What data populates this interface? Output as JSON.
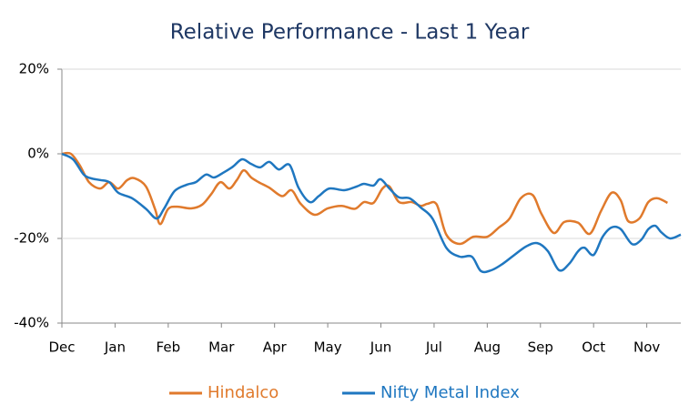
{
  "chart_data": {
    "type": "line",
    "title": "Relative Performance - Last 1 Year",
    "xlim": [
      0,
      11.64
    ],
    "xticks": [
      {
        "value": 0,
        "label": "Dec"
      },
      {
        "value": 1,
        "label": "Jan"
      },
      {
        "value": 2,
        "label": "Feb"
      },
      {
        "value": 3,
        "label": "Mar"
      },
      {
        "value": 4,
        "label": "Apr"
      },
      {
        "value": 5,
        "label": "May"
      },
      {
        "value": 6,
        "label": "Jun"
      },
      {
        "value": 7,
        "label": "Jul"
      },
      {
        "value": 8,
        "label": "Aug"
      },
      {
        "value": 9,
        "label": "Sep"
      },
      {
        "value": 10,
        "label": "Oct"
      },
      {
        "value": 11,
        "label": "Nov"
      }
    ],
    "ylim": [
      -40,
      20
    ],
    "yticks": [
      {
        "value": 20,
        "label": "20%"
      },
      {
        "value": 0,
        "label": "0%"
      },
      {
        "value": -20,
        "label": "-20%"
      },
      {
        "value": -40,
        "label": "-40%"
      }
    ],
    "grid": true,
    "legend": "bottom",
    "series": [
      {
        "name": "Hindalco",
        "color": "#e07a2c",
        "x": [
          0,
          0.17,
          0.34,
          0.51,
          0.72,
          0.89,
          1.06,
          1.23,
          1.37,
          1.58,
          1.75,
          1.85,
          2.0,
          2.17,
          2.43,
          2.64,
          2.81,
          2.98,
          3.15,
          3.29,
          3.42,
          3.56,
          3.7,
          3.9,
          4.14,
          4.32,
          4.49,
          4.75,
          5.0,
          5.26,
          5.51,
          5.68,
          5.86,
          6.03,
          6.16,
          6.34,
          6.58,
          6.75,
          6.88,
          7.05,
          7.23,
          7.48,
          7.74,
          8.0,
          8.22,
          8.42,
          8.63,
          8.85,
          9.02,
          9.25,
          9.45,
          9.71,
          9.93,
          10.14,
          10.34,
          10.51,
          10.65,
          10.86,
          11.03,
          11.2,
          11.39
        ],
        "values": [
          0,
          0,
          -2.8,
          -6.7,
          -8.2,
          -6.7,
          -8.2,
          -6.2,
          -5.8,
          -7.7,
          -13,
          -16.6,
          -13,
          -12.5,
          -12.9,
          -12,
          -9.5,
          -6.7,
          -8.2,
          -6.2,
          -3.9,
          -5.6,
          -6.7,
          -8,
          -10,
          -8.6,
          -11.8,
          -14.4,
          -12.9,
          -12.3,
          -13,
          -11.4,
          -11.6,
          -8.2,
          -7.7,
          -11.4,
          -11.4,
          -12.3,
          -11.8,
          -12,
          -19.1,
          -21.3,
          -19.6,
          -19.6,
          -17.4,
          -15.3,
          -10.5,
          -9.7,
          -14.2,
          -18.7,
          -16.1,
          -16.3,
          -18.9,
          -13.5,
          -9.2,
          -11,
          -15.9,
          -15.3,
          -11.4,
          -10.5,
          -11.6
        ]
      },
      {
        "name": "Nifty Metal Index",
        "color": "#1f77c0",
        "x": [
          0,
          0.21,
          0.41,
          0.55,
          0.72,
          0.89,
          1.06,
          1.32,
          1.58,
          1.78,
          1.92,
          2.12,
          2.35,
          2.52,
          2.71,
          2.86,
          3.03,
          3.22,
          3.39,
          3.56,
          3.73,
          3.9,
          4.08,
          4.28,
          4.45,
          4.66,
          4.83,
          5.03,
          5.31,
          5.55,
          5.68,
          5.86,
          5.99,
          6.16,
          6.34,
          6.54,
          6.75,
          6.97,
          7.23,
          7.48,
          7.71,
          7.88,
          8.08,
          8.29,
          8.51,
          8.73,
          8.94,
          9.14,
          9.35,
          9.54,
          9.71,
          9.83,
          10.0,
          10.17,
          10.34,
          10.51,
          10.72,
          10.89,
          11.03,
          11.16,
          11.27,
          11.44,
          11.64
        ],
        "values": [
          0,
          -1.3,
          -4.9,
          -5.8,
          -6.2,
          -6.7,
          -9.2,
          -10.5,
          -13,
          -15.3,
          -13,
          -8.8,
          -7.3,
          -6.7,
          -4.9,
          -5.6,
          -4.5,
          -3,
          -1.3,
          -2.4,
          -3.2,
          -1.9,
          -3.7,
          -2.6,
          -8,
          -11.4,
          -10,
          -8.2,
          -8.6,
          -7.7,
          -7.1,
          -7.5,
          -6,
          -8.2,
          -10.3,
          -10.5,
          -12.7,
          -15.3,
          -22.2,
          -24.3,
          -24.3,
          -27.7,
          -27.5,
          -26,
          -23.9,
          -21.9,
          -21.1,
          -23,
          -27.5,
          -26,
          -23,
          -22.2,
          -23.9,
          -19.6,
          -17.4,
          -17.8,
          -21.3,
          -20.4,
          -17.8,
          -17,
          -18.5,
          -20,
          -19.1
        ]
      }
    ]
  }
}
